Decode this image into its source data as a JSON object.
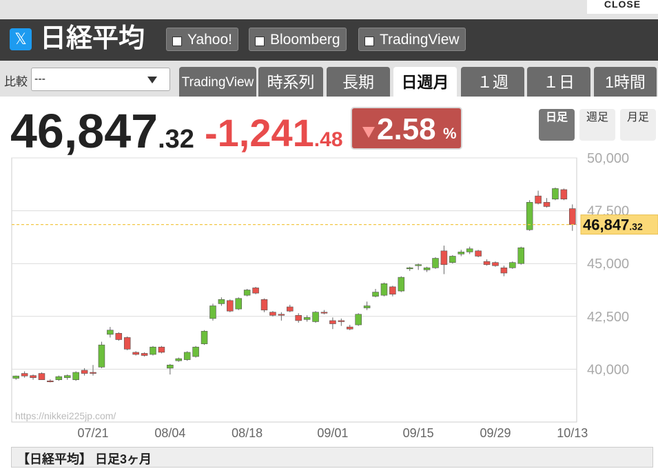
{
  "close_button": "CLOSE",
  "header": {
    "title": "日経平均",
    "links": [
      "Yahoo!",
      "Bloomberg",
      "TradingView"
    ]
  },
  "compare": {
    "label": "比較",
    "selected": "---"
  },
  "tabs": [
    "TradingView",
    "時系列",
    "長期",
    "日週月",
    "１週",
    "１日",
    "1時間"
  ],
  "active_tab": 3,
  "quote": {
    "price_int": "46,847",
    "price_dec": ".32",
    "change_int": "-1,241",
    "change_dec": ".48",
    "pct": "2.58",
    "pct_unit": "%"
  },
  "periods": [
    "日足",
    "週足",
    "月足"
  ],
  "active_period": 0,
  "chart_data": {
    "type": "candlestick",
    "watermark": "https://nikkei225jp.com/",
    "categories": [
      null,
      null,
      null,
      null,
      null,
      null,
      null,
      null,
      null,
      "07/21",
      null,
      null,
      null,
      null,
      null,
      null,
      null,
      null,
      "08/04",
      null,
      null,
      null,
      null,
      null,
      null,
      null,
      null,
      "08/18",
      null,
      null,
      null,
      null,
      null,
      null,
      null,
      null,
      null,
      "09/01",
      null,
      null,
      null,
      null,
      null,
      null,
      null,
      null,
      null,
      "09/15",
      null,
      null,
      null,
      null,
      null,
      null,
      null,
      null,
      "09/29",
      null,
      null,
      null,
      null,
      null,
      null,
      null,
      null,
      "10/13"
    ],
    "open": [
      39570,
      39800,
      39700,
      39800,
      39450,
      39500,
      39600,
      39500,
      39950,
      39850,
      40100,
      41650,
      41700,
      41500,
      40800,
      40750,
      40700,
      41050,
      40050,
      40400,
      40450,
      40600,
      41200,
      42400,
      43100,
      43250,
      42850,
      43500,
      43850,
      43300,
      42700,
      42600,
      42950,
      42550,
      42350,
      42250,
      42700,
      42300,
      42300,
      42000,
      42100,
      42900,
      43450,
      43500,
      43900,
      43700,
      44750,
      44900,
      44700,
      44800,
      45600,
      45050,
      45450,
      45550,
      45600,
      45100,
      45050,
      44800,
      44800,
      45000,
      46600,
      48200,
      47900,
      48050,
      48500,
      47600
    ],
    "high": [
      39700,
      39900,
      39750,
      39850,
      39520,
      39700,
      39750,
      39900,
      40050,
      40200,
      41300,
      42000,
      41750,
      41550,
      40850,
      40800,
      41100,
      41100,
      40250,
      40550,
      40850,
      41100,
      41850,
      43100,
      43400,
      43300,
      43400,
      43800,
      43900,
      43350,
      42750,
      42700,
      43050,
      42650,
      42550,
      42750,
      42800,
      42450,
      42400,
      42100,
      42650,
      43200,
      43800,
      44100,
      43950,
      44400,
      44850,
      45000,
      44850,
      45300,
      45850,
      45400,
      45650,
      45800,
      45650,
      45200,
      45100,
      44900,
      45100,
      45800,
      48000,
      48450,
      48100,
      48600,
      48550,
      47800
    ],
    "low": [
      39500,
      39600,
      39500,
      39500,
      39380,
      39450,
      39500,
      39450,
      39700,
      39700,
      40050,
      41500,
      41350,
      40900,
      40650,
      40600,
      40650,
      40750,
      39750,
      40350,
      40400,
      40550,
      41150,
      42300,
      43000,
      42700,
      42800,
      43450,
      43550,
      42700,
      42500,
      42300,
      42700,
      42200,
      42250,
      42200,
      42600,
      41900,
      42050,
      41850,
      42050,
      42800,
      43400,
      43450,
      43450,
      43650,
      44650,
      44700,
      44600,
      44750,
      44500,
      45000,
      45350,
      45450,
      45300,
      44900,
      44850,
      44400,
      44750,
      44950,
      46550,
      47800,
      47650,
      48000,
      48000,
      46550
    ],
    "close": [
      39680,
      39680,
      39600,
      39500,
      39420,
      39650,
      39700,
      39850,
      39800,
      39800,
      41150,
      41850,
      41400,
      40950,
      40700,
      40650,
      41050,
      40800,
      40200,
      40500,
      40800,
      41050,
      41800,
      43000,
      43300,
      42750,
      43350,
      43750,
      43600,
      42800,
      42550,
      42550,
      42750,
      42300,
      42450,
      42700,
      42650,
      42150,
      42250,
      41900,
      42600,
      43000,
      43650,
      44050,
      43550,
      44350,
      44800,
      44950,
      44800,
      45250,
      44950,
      45350,
      45550,
      45700,
      45350,
      44950,
      44900,
      44550,
      45050,
      45750,
      47900,
      47850,
      47700,
      48550,
      48050,
      46847.32
    ],
    "up_color": "#6cbf3c",
    "down_color": "#e8524c",
    "ylim": [
      37500,
      50000
    ],
    "yticks": [
      {
        "value": 40000,
        "label": "40,000"
      },
      {
        "value": 42500,
        "label": "42,500"
      },
      {
        "value": 45000,
        "label": "45,000"
      },
      {
        "value": 47500,
        "label": "47,500"
      },
      {
        "value": 50000,
        "label": "50,000"
      }
    ],
    "grid": true
  },
  "footer": {
    "title": "【日経平均】 日足3ヶ月"
  }
}
